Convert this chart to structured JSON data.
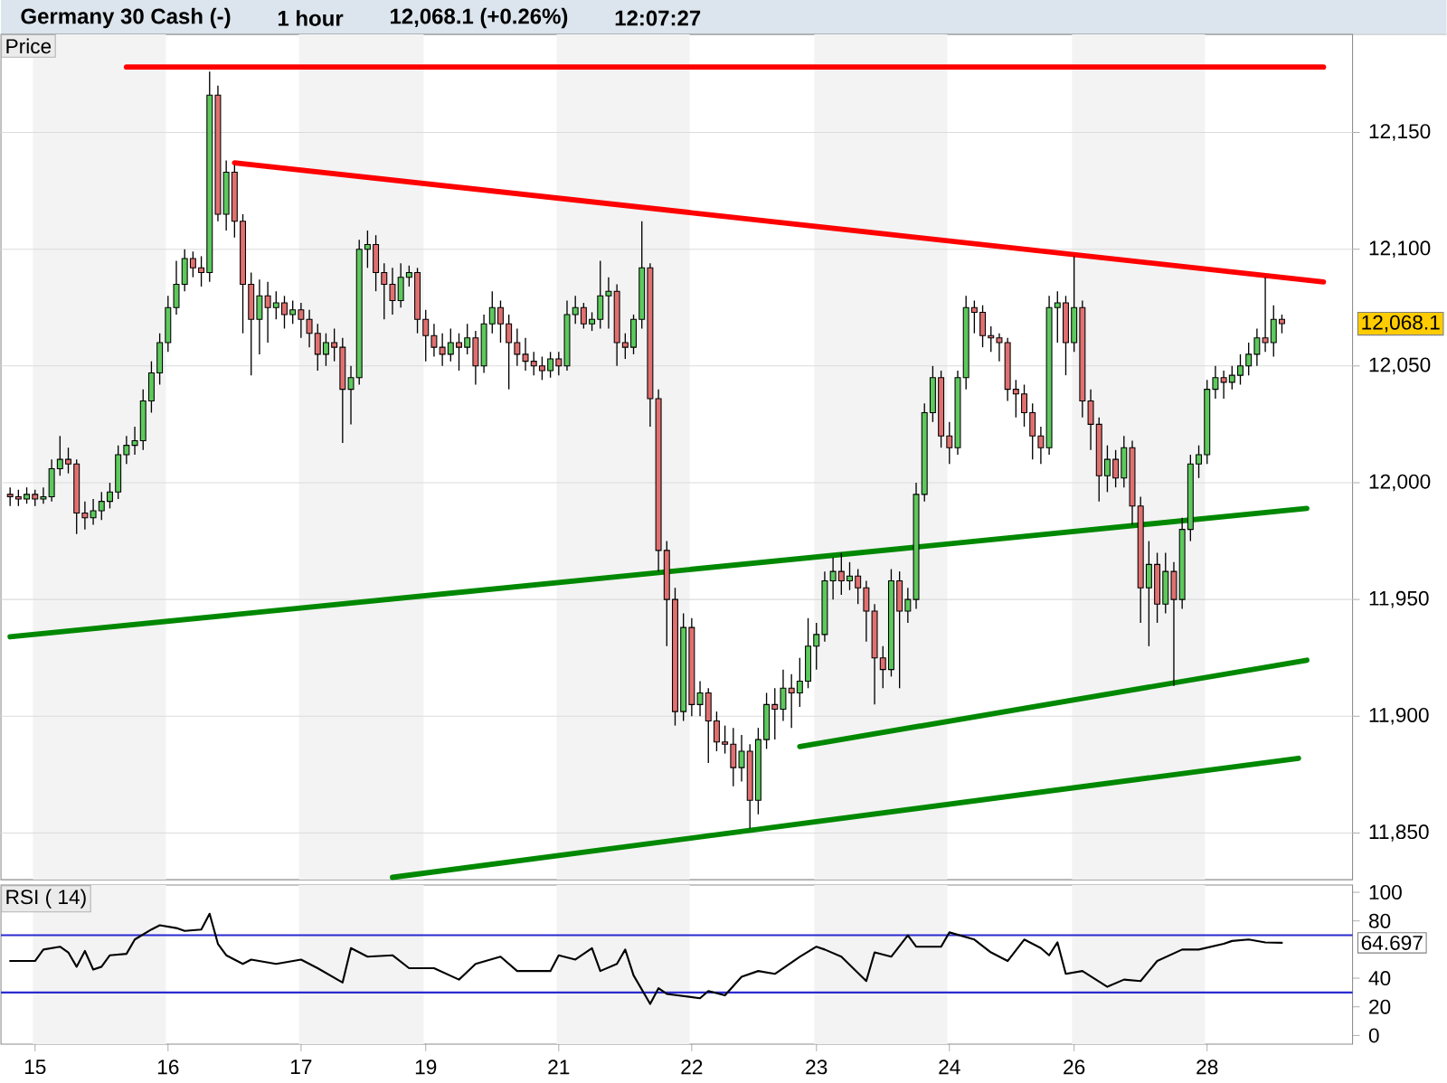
{
  "chart_data": [
    {
      "type": "candlestick",
      "title": "Germany 30 Cash (-)",
      "subtitle": "1 hour",
      "annotations": [
        "12,068.1 (+0.26%)",
        "12:07:27",
        "Price",
        "12,068.1"
      ],
      "categories": [
        null,
        null,
        null,
        "15",
        null,
        null,
        null,
        null,
        null,
        null,
        null,
        null,
        null,
        null,
        null,
        null,
        null,
        null,
        null,
        "16",
        null,
        null,
        null,
        null,
        null,
        null,
        null,
        null,
        null,
        null,
        null,
        null,
        null,
        null,
        null,
        "17",
        null,
        null,
        null,
        null,
        null,
        null,
        null,
        null,
        null,
        null,
        null,
        null,
        null,
        null,
        "19",
        null,
        null,
        null,
        null,
        null,
        null,
        null,
        null,
        null,
        null,
        null,
        null,
        null,
        null,
        null,
        "21",
        null,
        null,
        null,
        null,
        null,
        null,
        null,
        null,
        null,
        null,
        null,
        null,
        null,
        null,
        null,
        "22",
        null,
        null,
        null,
        null,
        null,
        null,
        null,
        null,
        null,
        null,
        null,
        null,
        null,
        null,
        "23",
        null,
        null,
        null,
        null,
        null,
        null,
        null,
        null,
        null,
        null,
        null,
        null,
        null,
        null,
        null,
        "24",
        null,
        null,
        null,
        null,
        null,
        null,
        null,
        null,
        null,
        null,
        null,
        null,
        null,
        null,
        "26",
        null,
        null,
        null,
        null,
        null,
        null,
        null,
        null,
        null,
        null,
        null,
        null,
        null,
        null,
        null,
        "28",
        null,
        null,
        null,
        null,
        null,
        null,
        null,
        null,
        null,
        null,
        null,
        null,
        null,
        null,
        null
      ],
      "ohlc": [
        [
          11995,
          11998,
          11990,
          11994
        ],
        [
          11994,
          11997,
          11990,
          11993
        ],
        [
          11993,
          11998,
          11991,
          11995
        ],
        [
          11995,
          11997,
          11990,
          11993
        ],
        [
          11993,
          11998,
          11991,
          11994
        ],
        [
          11994,
          12010,
          11992,
          12006
        ],
        [
          12006,
          12020,
          12003,
          12010
        ],
        [
          12010,
          12015,
          12004,
          12008
        ],
        [
          12008,
          12010,
          11978,
          11987
        ],
        [
          11987,
          11992,
          11980,
          11985
        ],
        [
          11985,
          11993,
          11982,
          11988
        ],
        [
          11988,
          11996,
          11984,
          11992
        ],
        [
          11992,
          12000,
          11989,
          11996
        ],
        [
          11996,
          12016,
          11993,
          12012
        ],
        [
          12012,
          12020,
          12008,
          12016
        ],
        [
          12016,
          12024,
          12012,
          12018
        ],
        [
          12018,
          12040,
          12014,
          12035
        ],
        [
          12035,
          12052,
          12030,
          12047
        ],
        [
          12047,
          12064,
          12042,
          12060
        ],
        [
          12060,
          12080,
          12056,
          12075
        ],
        [
          12075,
          12095,
          12072,
          12085
        ],
        [
          12085,
          12100,
          12082,
          12096
        ],
        [
          12096,
          12099,
          12088,
          12092
        ],
        [
          12092,
          12097,
          12084,
          12090
        ],
        [
          12090,
          12176,
          12086,
          12166
        ],
        [
          12166,
          12170,
          12112,
          12115
        ],
        [
          12115,
          12138,
          12108,
          12133
        ],
        [
          12133,
          12136,
          12105,
          12112
        ],
        [
          12112,
          12115,
          12064,
          12085
        ],
        [
          12085,
          12090,
          12046,
          12070
        ],
        [
          12070,
          12087,
          12055,
          12080
        ],
        [
          12080,
          12086,
          12060,
          12075
        ],
        [
          12075,
          12082,
          12070,
          12077
        ],
        [
          12077,
          12080,
          12066,
          12072
        ],
        [
          12072,
          12078,
          12068,
          12074
        ],
        [
          12074,
          12077,
          12062,
          12070
        ],
        [
          12070,
          12074,
          12058,
          12064
        ],
        [
          12064,
          12068,
          12048,
          12055
        ],
        [
          12055,
          12064,
          12050,
          12060
        ],
        [
          12060,
          12066,
          12052,
          12058
        ],
        [
          12058,
          12062,
          12017,
          12040
        ],
        [
          12040,
          12050,
          12025,
          12045
        ],
        [
          12045,
          12104,
          12042,
          12100
        ],
        [
          12100,
          12108,
          12092,
          12102
        ],
        [
          12102,
          12106,
          12082,
          12090
        ],
        [
          12090,
          12094,
          12070,
          12085
        ],
        [
          12085,
          12092,
          12072,
          12078
        ],
        [
          12078,
          12094,
          12075,
          12088
        ],
        [
          12088,
          12093,
          12084,
          12090
        ],
        [
          12090,
          12092,
          12064,
          12070
        ],
        [
          12070,
          12074,
          12052,
          12063
        ],
        [
          12063,
          12068,
          12054,
          12058
        ],
        [
          12058,
          12064,
          12050,
          12055
        ],
        [
          12055,
          12066,
          12052,
          12060
        ],
        [
          12060,
          12064,
          12048,
          12058
        ],
        [
          12058,
          12068,
          12055,
          12062
        ],
        [
          12062,
          12065,
          12042,
          12050
        ],
        [
          12050,
          12072,
          12047,
          12068
        ],
        [
          12068,
          12082,
          12064,
          12075
        ],
        [
          12075,
          12078,
          12060,
          12068
        ],
        [
          12068,
          12072,
          12040,
          12060
        ],
        [
          12060,
          12066,
          12050,
          12055
        ],
        [
          12055,
          12062,
          12048,
          12052
        ],
        [
          12052,
          12056,
          12046,
          12050
        ],
        [
          12050,
          12054,
          12044,
          12048
        ],
        [
          12048,
          12056,
          12045,
          12053
        ],
        [
          12053,
          12056,
          12046,
          12050
        ],
        [
          12050,
          12078,
          12048,
          12072
        ],
        [
          12072,
          12080,
          12068,
          12075
        ],
        [
          12075,
          12077,
          12066,
          12068
        ],
        [
          12068,
          12073,
          12065,
          12070
        ],
        [
          12070,
          12095,
          12066,
          12080
        ],
        [
          12080,
          12088,
          12066,
          12082
        ],
        [
          12082,
          12085,
          12050,
          12060
        ],
        [
          12060,
          12064,
          12053,
          12058
        ],
        [
          12058,
          12072,
          12055,
          12070
        ],
        [
          12070,
          12112,
          12066,
          12092
        ],
        [
          12092,
          12094,
          12024,
          12036
        ],
        [
          12036,
          12040,
          11962,
          11971
        ],
        [
          11971,
          11975,
          11930,
          11950
        ],
        [
          11950,
          11955,
          11896,
          11902
        ],
        [
          11902,
          11944,
          11898,
          11938
        ],
        [
          11938,
          11942,
          11900,
          11905
        ],
        [
          11905,
          11915,
          11900,
          11910
        ],
        [
          11910,
          11912,
          11880,
          11898
        ],
        [
          11898,
          11902,
          11885,
          11889
        ],
        [
          11889,
          11896,
          11884,
          11888
        ],
        [
          11888,
          11895,
          11870,
          11878
        ],
        [
          11878,
          11892,
          11872,
          11885
        ],
        [
          11885,
          11888,
          11852,
          11864
        ],
        [
          11864,
          11895,
          11858,
          11890
        ],
        [
          11890,
          11910,
          11886,
          11905
        ],
        [
          11905,
          11912,
          11890,
          11903
        ],
        [
          11903,
          11920,
          11898,
          11912
        ],
        [
          11912,
          11918,
          11895,
          11910
        ],
        [
          11910,
          11925,
          11904,
          11915
        ],
        [
          11915,
          11942,
          11912,
          11930
        ],
        [
          11930,
          11940,
          11920,
          11935
        ],
        [
          11935,
          11962,
          11932,
          11958
        ],
        [
          11958,
          11968,
          11950,
          11962
        ],
        [
          11962,
          11970,
          11952,
          11958
        ],
        [
          11958,
          11966,
          11954,
          11960
        ],
        [
          11960,
          11963,
          11948,
          11955
        ],
        [
          11955,
          11958,
          11932,
          11945
        ],
        [
          11945,
          11948,
          11905,
          11925
        ],
        [
          11925,
          11930,
          11912,
          11920
        ],
        [
          11920,
          11963,
          11917,
          11958
        ],
        [
          11958,
          11962,
          11912,
          11945
        ],
        [
          11945,
          11955,
          11940,
          11950
        ],
        [
          11950,
          12000,
          11946,
          11995
        ],
        [
          11995,
          12034,
          11992,
          12030
        ],
        [
          12030,
          12050,
          12026,
          12045
        ],
        [
          12045,
          12048,
          12015,
          12020
        ],
        [
          12020,
          12026,
          12008,
          12015
        ],
        [
          12015,
          12048,
          12012,
          12045
        ],
        [
          12045,
          12080,
          12040,
          12075
        ],
        [
          12075,
          12078,
          12064,
          12073
        ],
        [
          12073,
          12076,
          12058,
          12063
        ],
        [
          12063,
          12067,
          12056,
          12062
        ],
        [
          12062,
          12064,
          12052,
          12060
        ],
        [
          12060,
          12062,
          12035,
          12040
        ],
        [
          12040,
          12044,
          12028,
          12038
        ],
        [
          12038,
          12042,
          12024,
          12030
        ],
        [
          12030,
          12034,
          12010,
          12020
        ],
        [
          12020,
          12024,
          12008,
          12015
        ],
        [
          12015,
          12080,
          12012,
          12075
        ],
        [
          12075,
          12082,
          12060,
          12077
        ],
        [
          12077,
          12080,
          12046,
          12060
        ],
        [
          12060,
          12097,
          12056,
          12075
        ],
        [
          12075,
          12078,
          12028,
          12035
        ],
        [
          12035,
          12040,
          12014,
          12025
        ],
        [
          12025,
          12028,
          11992,
          12003
        ],
        [
          12003,
          12016,
          11996,
          12010
        ],
        [
          12010,
          12014,
          11998,
          12002
        ],
        [
          12002,
          12020,
          11998,
          12015
        ],
        [
          12015,
          12018,
          11982,
          11990
        ],
        [
          11990,
          11994,
          11940,
          11955
        ],
        [
          11955,
          11975,
          11930,
          11965
        ],
        [
          11965,
          11970,
          11940,
          11948
        ],
        [
          11948,
          11970,
          11944,
          11962
        ],
        [
          11962,
          11966,
          11913,
          11950
        ],
        [
          11950,
          11985,
          11946,
          11980
        ],
        [
          11980,
          12012,
          11975,
          12008
        ],
        [
          12008,
          12016,
          12002,
          12012
        ],
        [
          12012,
          12044,
          12008,
          12040
        ],
        [
          12040,
          12050,
          12036,
          12045
        ],
        [
          12045,
          12048,
          12036,
          12043
        ],
        [
          12043,
          12050,
          12040,
          12046
        ],
        [
          12046,
          12055,
          12042,
          12050
        ],
        [
          12050,
          12060,
          12046,
          12055
        ],
        [
          12055,
          12066,
          12050,
          12062
        ],
        [
          12062,
          12088,
          12056,
          12060
        ],
        [
          12060,
          12076,
          12054,
          12070
        ],
        [
          12070,
          12072,
          12064,
          12068.1
        ],
        null,
        null,
        null,
        null,
        null,
        null
      ],
      "series": [
        {
          "type": "line",
          "color": "#ff0000",
          "values": [
            null,
            null,
            null,
            null,
            null,
            null,
            null,
            null,
            null,
            null,
            null,
            null,
            null,
            null,
            12178,
            null,
            null,
            null,
            null,
            null,
            null,
            null,
            null,
            null,
            null,
            null,
            null,
            null,
            null,
            null,
            null,
            null,
            null,
            null,
            null,
            null,
            null,
            null,
            null,
            null,
            null,
            null,
            null,
            null,
            null,
            null,
            null,
            null,
            null,
            null,
            null,
            null,
            null,
            null,
            null,
            null,
            null,
            null,
            null,
            null,
            null,
            null,
            null,
            null,
            null,
            null,
            null,
            null,
            null,
            null,
            null,
            null,
            null,
            null,
            null,
            null,
            null,
            null,
            null,
            null,
            null,
            null,
            null,
            null,
            null,
            null,
            null,
            null,
            null,
            null,
            null,
            null,
            null,
            null,
            null,
            null,
            null,
            null,
            null,
            null,
            null,
            null,
            null,
            null,
            null,
            null,
            null,
            null,
            null,
            null,
            null,
            null,
            null,
            null,
            null,
            null,
            null,
            null,
            null,
            null,
            null,
            null,
            null,
            null,
            null,
            null,
            null,
            null,
            null,
            null,
            null,
            null,
            null,
            null,
            null,
            null,
            null,
            null,
            null,
            null,
            null,
            null,
            null,
            null,
            null,
            null,
            null,
            null,
            null,
            null,
            null,
            null,
            null,
            null,
            null,
            null,
            null,
            null,
            12178,
            null
          ]
        },
        {
          "type": "line",
          "color": "#ff0000",
          "values": [
            null,
            null,
            null,
            null,
            null,
            null,
            null,
            null,
            null,
            null,
            null,
            null,
            null,
            null,
            null,
            null,
            null,
            null,
            null,
            null,
            null,
            null,
            null,
            null,
            null,
            null,
            null,
            12137,
            null,
            null,
            null,
            null,
            null,
            null,
            null,
            null,
            null,
            null,
            null,
            null,
            null,
            null,
            null,
            null,
            null,
            null,
            null,
            null,
            null,
            null,
            null,
            null,
            null,
            null,
            null,
            null,
            null,
            null,
            null,
            null,
            null,
            null,
            null,
            null,
            null,
            null,
            null,
            null,
            null,
            null,
            null,
            null,
            null,
            null,
            null,
            null,
            null,
            null,
            null,
            null,
            null,
            null,
            null,
            null,
            null,
            null,
            null,
            null,
            null,
            null,
            null,
            null,
            null,
            null,
            null,
            null,
            null,
            null,
            null,
            null,
            null,
            null,
            null,
            null,
            null,
            null,
            null,
            null,
            null,
            null,
            null,
            null,
            null,
            null,
            null,
            null,
            null,
            null,
            null,
            null,
            null,
            null,
            null,
            null,
            null,
            null,
            null,
            null,
            null,
            null,
            null,
            null,
            null,
            null,
            null,
            null,
            null,
            null,
            null,
            null,
            null,
            null,
            null,
            null,
            null,
            null,
            null,
            null,
            null,
            null,
            null,
            null,
            null,
            null,
            null,
            null,
            null,
            null,
            12086,
            null
          ]
        },
        {
          "type": "line",
          "color": "#008800",
          "values": [
            11934,
            null,
            null,
            null,
            null,
            null,
            null,
            null,
            null,
            null,
            null,
            null,
            null,
            null,
            null,
            null,
            null,
            null,
            null,
            null,
            null,
            null,
            null,
            null,
            null,
            null,
            null,
            null,
            null,
            null,
            null,
            null,
            null,
            null,
            null,
            null,
            null,
            null,
            null,
            null,
            null,
            null,
            null,
            null,
            null,
            null,
            null,
            null,
            null,
            null,
            null,
            null,
            null,
            null,
            null,
            null,
            null,
            null,
            null,
            null,
            null,
            null,
            null,
            null,
            null,
            null,
            null,
            null,
            null,
            null,
            null,
            null,
            null,
            null,
            null,
            null,
            null,
            null,
            null,
            null,
            null,
            null,
            null,
            null,
            null,
            null,
            null,
            null,
            null,
            null,
            null,
            null,
            null,
            null,
            null,
            null,
            null,
            null,
            null,
            null,
            null,
            null,
            null,
            null,
            null,
            null,
            null,
            null,
            null,
            null,
            null,
            null,
            null,
            null,
            null,
            null,
            null,
            null,
            null,
            null,
            null,
            null,
            null,
            null,
            null,
            null,
            null,
            null,
            null,
            null,
            null,
            null,
            null,
            null,
            null,
            null,
            null,
            null,
            null,
            null,
            null,
            null,
            null,
            null,
            null,
            null,
            null,
            null,
            null,
            null,
            null,
            null,
            null,
            null,
            null,
            null,
            11989,
            null,
            null,
            null
          ]
        },
        {
          "type": "line",
          "color": "#008800",
          "values": [
            null,
            null,
            null,
            null,
            null,
            null,
            null,
            null,
            null,
            null,
            null,
            null,
            null,
            null,
            null,
            null,
            null,
            null,
            null,
            null,
            null,
            null,
            null,
            null,
            null,
            null,
            null,
            null,
            null,
            null,
            null,
            null,
            null,
            null,
            null,
            null,
            null,
            null,
            null,
            null,
            null,
            null,
            null,
            null,
            null,
            null,
            null,
            null,
            null,
            null,
            null,
            null,
            null,
            null,
            null,
            null,
            null,
            null,
            null,
            null,
            null,
            null,
            null,
            null,
            null,
            null,
            null,
            null,
            null,
            null,
            null,
            null,
            null,
            null,
            null,
            null,
            null,
            null,
            null,
            null,
            null,
            null,
            null,
            null,
            null,
            null,
            null,
            null,
            null,
            null,
            null,
            null,
            null,
            null,
            null,
            11887,
            null,
            null,
            null,
            null,
            null,
            null,
            null,
            null,
            null,
            null,
            null,
            null,
            null,
            null,
            null,
            null,
            null,
            null,
            null,
            null,
            null,
            null,
            null,
            null,
            null,
            null,
            null,
            null,
            null,
            null,
            null,
            null,
            null,
            null,
            null,
            null,
            null,
            null,
            null,
            null,
            null,
            null,
            null,
            null,
            null,
            null,
            null,
            null,
            null,
            null,
            null,
            null,
            null,
            null,
            null,
            null,
            null,
            null,
            null,
            null,
            11924,
            null,
            null,
            null
          ]
        },
        {
          "type": "line",
          "color": "#008800",
          "values": [
            null,
            null,
            null,
            null,
            null,
            null,
            null,
            null,
            null,
            null,
            null,
            null,
            null,
            null,
            null,
            null,
            null,
            null,
            null,
            null,
            null,
            null,
            null,
            null,
            null,
            null,
            null,
            null,
            null,
            null,
            null,
            null,
            null,
            null,
            null,
            null,
            null,
            null,
            null,
            null,
            null,
            null,
            null,
            null,
            null,
            null,
            11831,
            null,
            null,
            null,
            null,
            null,
            null,
            null,
            null,
            null,
            null,
            null,
            null,
            null,
            null,
            null,
            null,
            null,
            null,
            null,
            null,
            null,
            null,
            null,
            null,
            null,
            null,
            null,
            null,
            null,
            null,
            null,
            null,
            null,
            null,
            null,
            null,
            null,
            null,
            null,
            null,
            null,
            null,
            null,
            null,
            null,
            null,
            null,
            null,
            null,
            null,
            null,
            null,
            null,
            null,
            null,
            null,
            null,
            null,
            null,
            null,
            null,
            null,
            null,
            null,
            null,
            null,
            null,
            null,
            null,
            null,
            null,
            null,
            null,
            null,
            null,
            null,
            null,
            null,
            null,
            null,
            null,
            null,
            null,
            null,
            null,
            null,
            null,
            null,
            null,
            null,
            null,
            null,
            null,
            null,
            null,
            null,
            null,
            null,
            null,
            null,
            null,
            null,
            null,
            null,
            null,
            null,
            null,
            null,
            11882,
            null,
            null,
            null,
            null
          ]
        }
      ],
      "ylim": [
        11830,
        12192
      ],
      "yticks": [
        {
          "value": 11850,
          "label": "11,850"
        },
        {
          "value": 11900,
          "label": "11,900"
        },
        {
          "value": 11950,
          "label": "11,950"
        },
        {
          "value": 12000,
          "label": "12,000"
        },
        {
          "value": 12050,
          "label": "12,050"
        },
        {
          "value": 12100,
          "label": "12,100"
        },
        {
          "value": 12150,
          "label": "12,150"
        }
      ],
      "grid": "y",
      "tick_labels": "y"
    },
    {
      "type": "line",
      "title": "RSI ( 14)",
      "annotations": [
        "64.697"
      ],
      "categories": [
        null,
        null,
        null,
        "15",
        null,
        null,
        null,
        null,
        null,
        null,
        null,
        null,
        null,
        null,
        null,
        null,
        null,
        null,
        null,
        "16",
        null,
        null,
        null,
        null,
        null,
        null,
        null,
        null,
        null,
        null,
        null,
        null,
        null,
        null,
        null,
        "17",
        null,
        null,
        null,
        null,
        null,
        null,
        null,
        null,
        null,
        null,
        null,
        null,
        null,
        null,
        "19",
        null,
        null,
        null,
        null,
        null,
        null,
        null,
        null,
        null,
        null,
        null,
        null,
        null,
        null,
        null,
        "21",
        null,
        null,
        null,
        null,
        null,
        null,
        null,
        null,
        null,
        null,
        null,
        null,
        null,
        null,
        null,
        "22",
        null,
        null,
        null,
        null,
        null,
        null,
        null,
        null,
        null,
        null,
        null,
        null,
        null,
        null,
        "23",
        null,
        null,
        null,
        null,
        null,
        null,
        null,
        null,
        null,
        null,
        null,
        null,
        null,
        null,
        null,
        "24",
        null,
        null,
        null,
        null,
        null,
        null,
        null,
        null,
        null,
        null,
        null,
        null,
        null,
        null,
        "26",
        null,
        null,
        null,
        null,
        null,
        null,
        null,
        null,
        null,
        null,
        null,
        null,
        null,
        null,
        null,
        "28",
        null,
        null,
        null,
        null,
        null,
        null,
        null,
        null,
        null,
        null,
        null,
        null,
        null,
        null,
        null
      ],
      "series": [
        {
          "color": "#000000",
          "values": [
            52,
            null,
            null,
            52,
            60,
            null,
            62,
            58,
            48,
            59,
            46,
            48,
            56,
            null,
            57,
            67,
            null,
            74,
            77,
            null,
            75,
            73,
            null,
            74,
            85,
            64,
            56,
            null,
            50,
            53,
            null,
            null,
            50,
            null,
            null,
            53,
            null,
            47,
            null,
            null,
            37,
            61,
            null,
            55,
            null,
            null,
            56,
            null,
            47,
            null,
            null,
            47,
            null,
            null,
            39,
            null,
            50,
            null,
            null,
            55,
            null,
            45,
            null,
            null,
            null,
            45,
            56,
            null,
            53,
            null,
            61,
            45,
            null,
            50,
            60,
            42,
            null,
            22,
            33,
            29,
            null,
            null,
            null,
            26,
            31,
            null,
            28,
            null,
            41,
            null,
            45,
            null,
            43,
            null,
            null,
            55,
            null,
            62,
            60,
            null,
            55,
            null,
            null,
            38,
            58,
            null,
            55,
            null,
            70,
            62,
            null,
            null,
            62,
            72,
            null,
            null,
            67,
            null,
            58,
            null,
            52,
            null,
            67,
            null,
            61,
            56,
            65,
            43,
            null,
            45,
            null,
            null,
            34,
            null,
            39,
            null,
            38,
            null,
            52,
            null,
            null,
            60,
            null,
            60,
            null,
            null,
            64,
            66,
            null,
            67,
            null,
            65,
            null,
            64.697,
            null,
            null,
            null,
            null,
            null,
            null
          ]
        }
      ],
      "ref_lines": [
        {
          "axis": "y",
          "value": 70,
          "color": "#2b2bd0"
        },
        {
          "axis": "y",
          "value": 30,
          "color": "#2b2bd0"
        }
      ],
      "ylim": [
        -6,
        105
      ],
      "yticks": [
        0,
        20,
        40,
        80,
        100
      ]
    }
  ]
}
